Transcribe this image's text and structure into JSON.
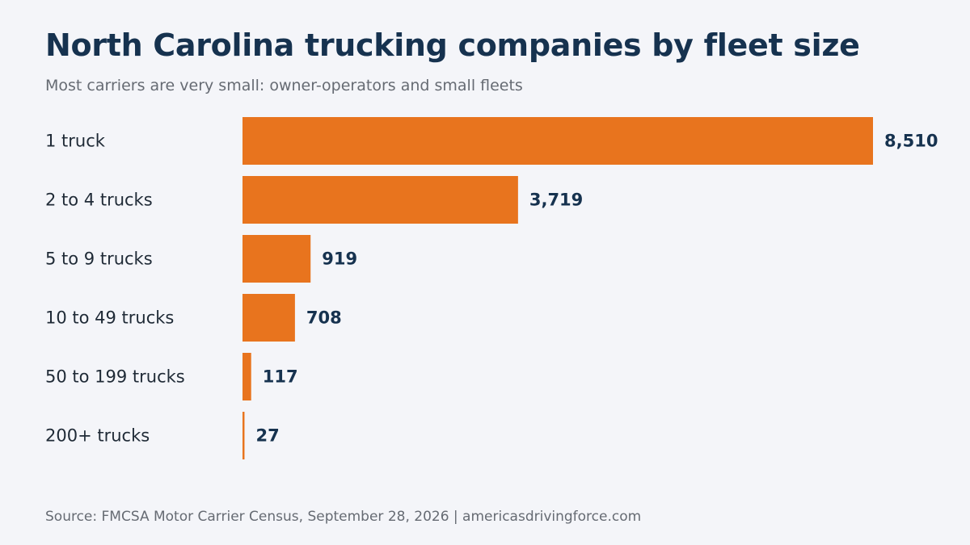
{
  "header": {
    "title": "North Carolina trucking companies by fleet size",
    "subtitle": "Most carriers are very small: owner-operators and small fleets"
  },
  "footer": {
    "source": "Source: FMCSA Motor Carrier Census, September 28, 2026 | americasdrivingforce.com"
  },
  "colors": {
    "bar": "#e8741e",
    "value_text": "#16324f",
    "category_text": "#1f2a36",
    "background": "#f4f5f9"
  },
  "chart_data": {
    "type": "bar",
    "orientation": "horizontal",
    "title": "North Carolina trucking companies by fleet size",
    "subtitle": "Most carriers are very small: owner-operators and small fleets",
    "categories": [
      "1 truck",
      "2 to 4 trucks",
      "5 to 9 trucks",
      "10 to 49 trucks",
      "50 to 199 trucks",
      "200+ trucks"
    ],
    "values": [
      8510,
      3719,
      919,
      708,
      117,
      27
    ],
    "value_labels": [
      "8,510",
      "3,719",
      "919",
      "708",
      "117",
      "27"
    ],
    "xlim": [
      0,
      8510
    ],
    "grid": false,
    "legend": "none"
  }
}
